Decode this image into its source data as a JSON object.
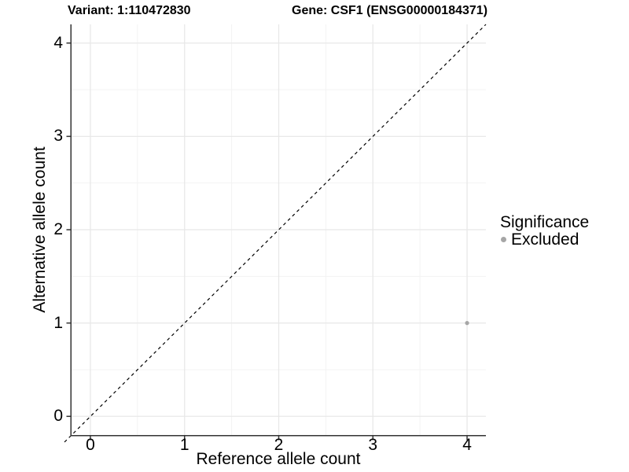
{
  "chart_data": {
    "type": "scatter",
    "titles": [
      "Variant: 1:110472830",
      "Gene: CSF1 (ENSG00000184371)"
    ],
    "xlabel": "Reference allele count",
    "ylabel": "Alternative allele count",
    "xlim": [
      -0.2,
      4.2
    ],
    "ylim": [
      -0.2,
      4.2
    ],
    "xticks": [
      0,
      1,
      2,
      3,
      4
    ],
    "yticks": [
      0,
      1,
      2,
      3,
      4
    ],
    "xminor": [
      0.5,
      1.5,
      2.5,
      3.5
    ],
    "yminor": [
      0.5,
      1.5,
      2.5,
      3.5
    ],
    "grid": "major and minor, very light gray, white panel background",
    "panel_border": "left and bottom axis lines only",
    "identity_line": {
      "label": "y = x",
      "style": "dashed",
      "color": "#000000"
    },
    "series": [
      {
        "name": "Excluded",
        "color": "#a6a6a6",
        "points": [
          {
            "x": 4,
            "y": 1
          }
        ]
      }
    ],
    "legend": {
      "title": "Significance",
      "position": "right",
      "entries": [
        {
          "label": "Excluded",
          "color": "#a6a6a6"
        }
      ]
    }
  },
  "colors": {
    "background": "#ffffff",
    "axis_line": "#333333",
    "tick_mark": "#333333",
    "grid_major": "#e8e8e8",
    "grid_minor": "#f3f3f3",
    "identity_line": "#000000",
    "excluded_point": "#a6a6a6",
    "text": "#000000"
  }
}
